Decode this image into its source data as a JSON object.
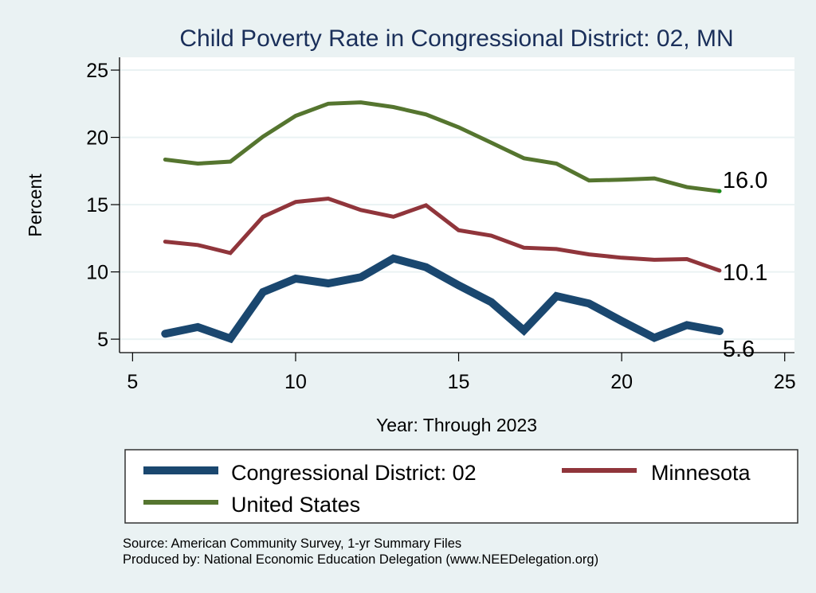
{
  "chart_data": {
    "type": "line",
    "title": "Child Poverty Rate in Congressional District:  02, MN",
    "xlabel": "Year: Through 2023",
    "ylabel": "Percent",
    "xlim": [
      4.6,
      25.3
    ],
    "ylim": [
      4.0,
      25.95
    ],
    "xticks": [
      5,
      10,
      15,
      20,
      25
    ],
    "yticks": [
      5,
      10,
      15,
      20,
      25
    ],
    "grid": "horizontal",
    "x": [
      6,
      7,
      8,
      9,
      10,
      11,
      12,
      13,
      14,
      15,
      16,
      17,
      18,
      19,
      20,
      21,
      22,
      23
    ],
    "series": [
      {
        "name": "United States",
        "color": "#55752f",
        "values": [
          18.35,
          18.05,
          18.2,
          20.05,
          21.6,
          22.5,
          22.6,
          22.25,
          21.7,
          20.75,
          19.6,
          18.45,
          18.05,
          16.8,
          16.85,
          16.95,
          16.3,
          16.0
        ],
        "end_label": "16.0"
      },
      {
        "name": "Minnesota",
        "color": "#90353b",
        "values": [
          12.25,
          12.0,
          11.4,
          14.1,
          15.2,
          15.45,
          14.6,
          14.1,
          14.95,
          13.1,
          12.7,
          11.8,
          11.7,
          11.3,
          11.05,
          10.9,
          10.95,
          10.1
        ],
        "end_label": "10.1"
      },
      {
        "name": "Congressional District:  02",
        "color": "#1a476f",
        "values": [
          5.4,
          5.9,
          5.05,
          8.5,
          9.5,
          9.15,
          9.6,
          11.0,
          10.35,
          9.0,
          7.75,
          5.65,
          8.2,
          7.65,
          6.35,
          5.1,
          6.05,
          5.6
        ],
        "end_label": "5.6"
      }
    ],
    "legend": {
      "placement": "bottom",
      "entries": [
        {
          "label": "Congressional District:  02",
          "color": "#1a476f"
        },
        {
          "label": "Minnesota",
          "color": "#90353b"
        },
        {
          "label": "United States",
          "color": "#55752f"
        }
      ]
    },
    "notes": [
      "Source: American Community Survey, 1-yr Summary Files",
      "Produced by: National Economic Education Delegation (www.NEEDelegation.org)"
    ]
  }
}
